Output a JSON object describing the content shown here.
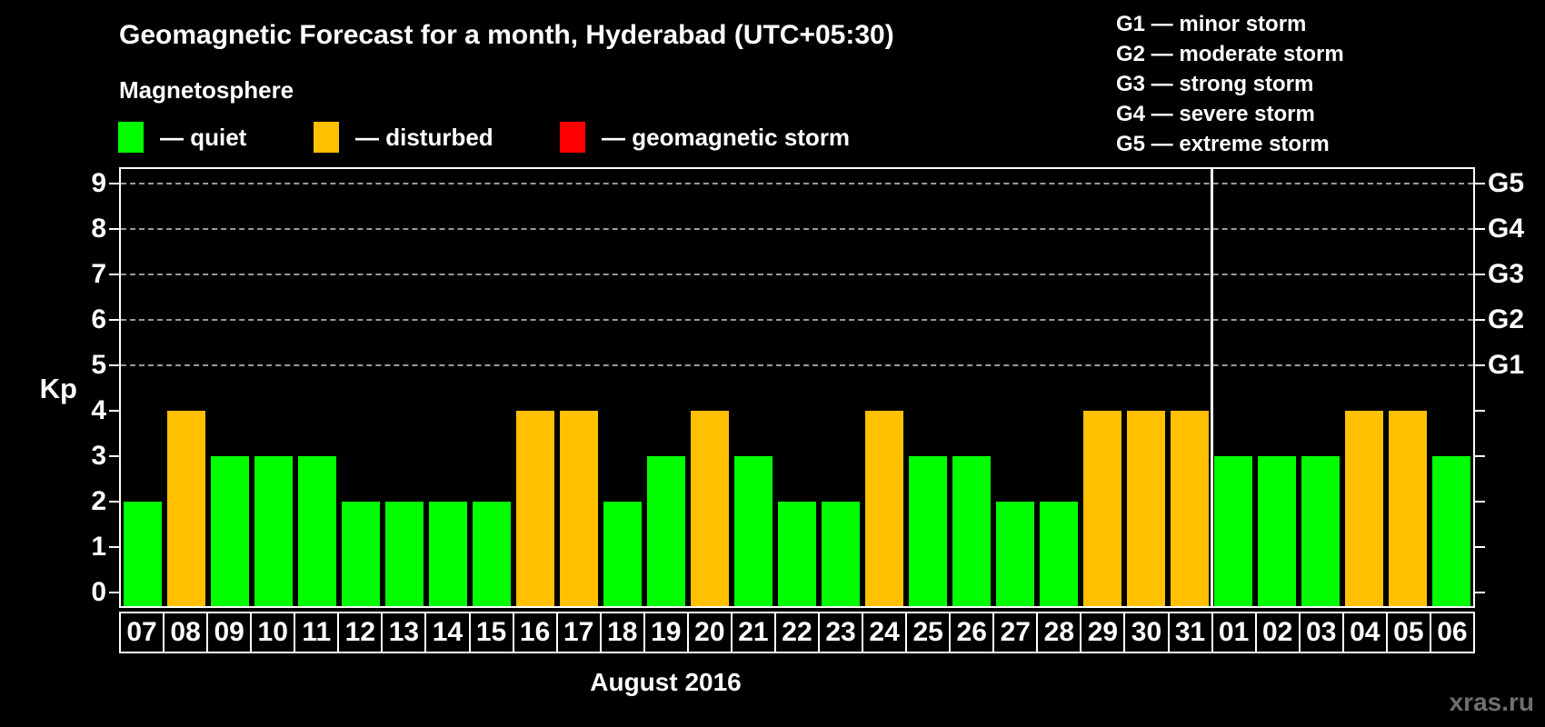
{
  "header": {
    "title": "Geomagnetic Forecast for a month, Hyderabad (UTC+05:30)",
    "subtitle": "Magnetosphere"
  },
  "legend": {
    "items": [
      {
        "status": "quiet",
        "label": "— quiet",
        "color": "#00ff00"
      },
      {
        "status": "disturbed",
        "label": "— disturbed",
        "color": "#ffc000"
      },
      {
        "status": "storm",
        "label": "— geomagnetic storm",
        "color": "#ff0000"
      }
    ]
  },
  "g_scale_legend": [
    "G1 — minor storm",
    "G2 — moderate storm",
    "G3 — strong storm",
    "G4 — severe storm",
    "G5 — extreme storm"
  ],
  "watermark": "xras.ru",
  "chart_data": {
    "type": "bar",
    "title": "Geomagnetic Forecast for a month, Hyderabad (UTC+05:30)",
    "xlabel": "August 2016",
    "ylabel": "Kp",
    "ylim": [
      0,
      9
    ],
    "y_ticks": [
      0,
      1,
      2,
      3,
      4,
      5,
      6,
      7,
      8,
      9
    ],
    "gridlines_at": [
      5,
      6,
      7,
      8,
      9
    ],
    "grid": "dashed",
    "legend_position": "top",
    "right_axis_labels": [
      {
        "kp": 9,
        "label": "G5"
      },
      {
        "kp": 8,
        "label": "G4"
      },
      {
        "kp": 7,
        "label": "G3"
      },
      {
        "kp": 6,
        "label": "G2"
      },
      {
        "kp": 5,
        "label": "G1"
      }
    ],
    "categories": [
      "07",
      "08",
      "09",
      "10",
      "11",
      "12",
      "13",
      "14",
      "15",
      "16",
      "17",
      "18",
      "19",
      "20",
      "21",
      "22",
      "23",
      "24",
      "25",
      "26",
      "27",
      "28",
      "29",
      "30",
      "31",
      "01",
      "02",
      "03",
      "04",
      "05",
      "06"
    ],
    "values": [
      2,
      4,
      3,
      3,
      3,
      2,
      2,
      2,
      2,
      4,
      4,
      2,
      3,
      4,
      3,
      2,
      2,
      4,
      3,
      3,
      2,
      2,
      4,
      4,
      4,
      3,
      3,
      3,
      4,
      4,
      3
    ],
    "statuses": [
      "quiet",
      "disturbed",
      "quiet",
      "quiet",
      "quiet",
      "quiet",
      "quiet",
      "quiet",
      "quiet",
      "disturbed",
      "disturbed",
      "quiet",
      "quiet",
      "disturbed",
      "quiet",
      "quiet",
      "quiet",
      "disturbed",
      "quiet",
      "quiet",
      "quiet",
      "quiet",
      "disturbed",
      "disturbed",
      "disturbed",
      "quiet",
      "quiet",
      "quiet",
      "disturbed",
      "disturbed",
      "quiet"
    ],
    "month_separator_after": "31"
  }
}
